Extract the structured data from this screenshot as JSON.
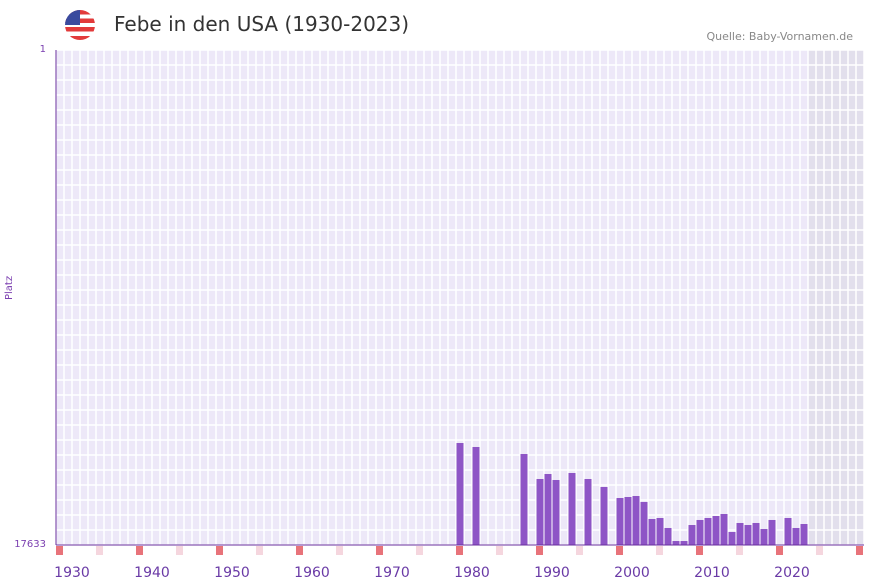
{
  "header": {
    "title": "Febe in den USA (1930-2023)",
    "source": "Quelle: Baby-Vornamen.de",
    "flag_icon": "us-flag-icon"
  },
  "colors": {
    "bar": "#8e55c6",
    "axis": "#6a2f9e",
    "decade_marker": "#e8737a",
    "halfdecade_marker": "#f5d6de",
    "plot_bg": "#ede8f8",
    "future_bg": "#e2dfec"
  },
  "chart_data": {
    "type": "bar",
    "title": "Febe in den USA (1930-2023)",
    "xlabel": "",
    "ylabel": "Platz",
    "ylim": [
      17633,
      1
    ],
    "xlim": [
      1928,
      2028
    ],
    "future_from": 2022,
    "y_ticks": [
      "1",
      "17633"
    ],
    "x_ticks": [
      1930,
      1940,
      1950,
      1960,
      1970,
      1980,
      1990,
      2000,
      2010,
      2020
    ],
    "x": [
      1978,
      1980,
      1986,
      1988,
      1989,
      1990,
      1992,
      1994,
      1996,
      1998,
      1999,
      2000,
      2001,
      2002,
      2003,
      2004,
      2005,
      2006,
      2007,
      2008,
      2009,
      2010,
      2011,
      2012,
      2013,
      2014,
      2015,
      2016,
      2017,
      2019,
      2020,
      2021
    ],
    "values": [
      14000,
      14142,
      14392,
      15282,
      15104,
      15318,
      15068,
      15282,
      15567,
      15959,
      15923,
      15888,
      16101,
      16707,
      16671,
      17027,
      17491,
      17491,
      16921,
      16742,
      16671,
      16600,
      16529,
      17170,
      16849,
      16921,
      16849,
      17063,
      16742,
      16671,
      17027,
      16885
    ]
  }
}
